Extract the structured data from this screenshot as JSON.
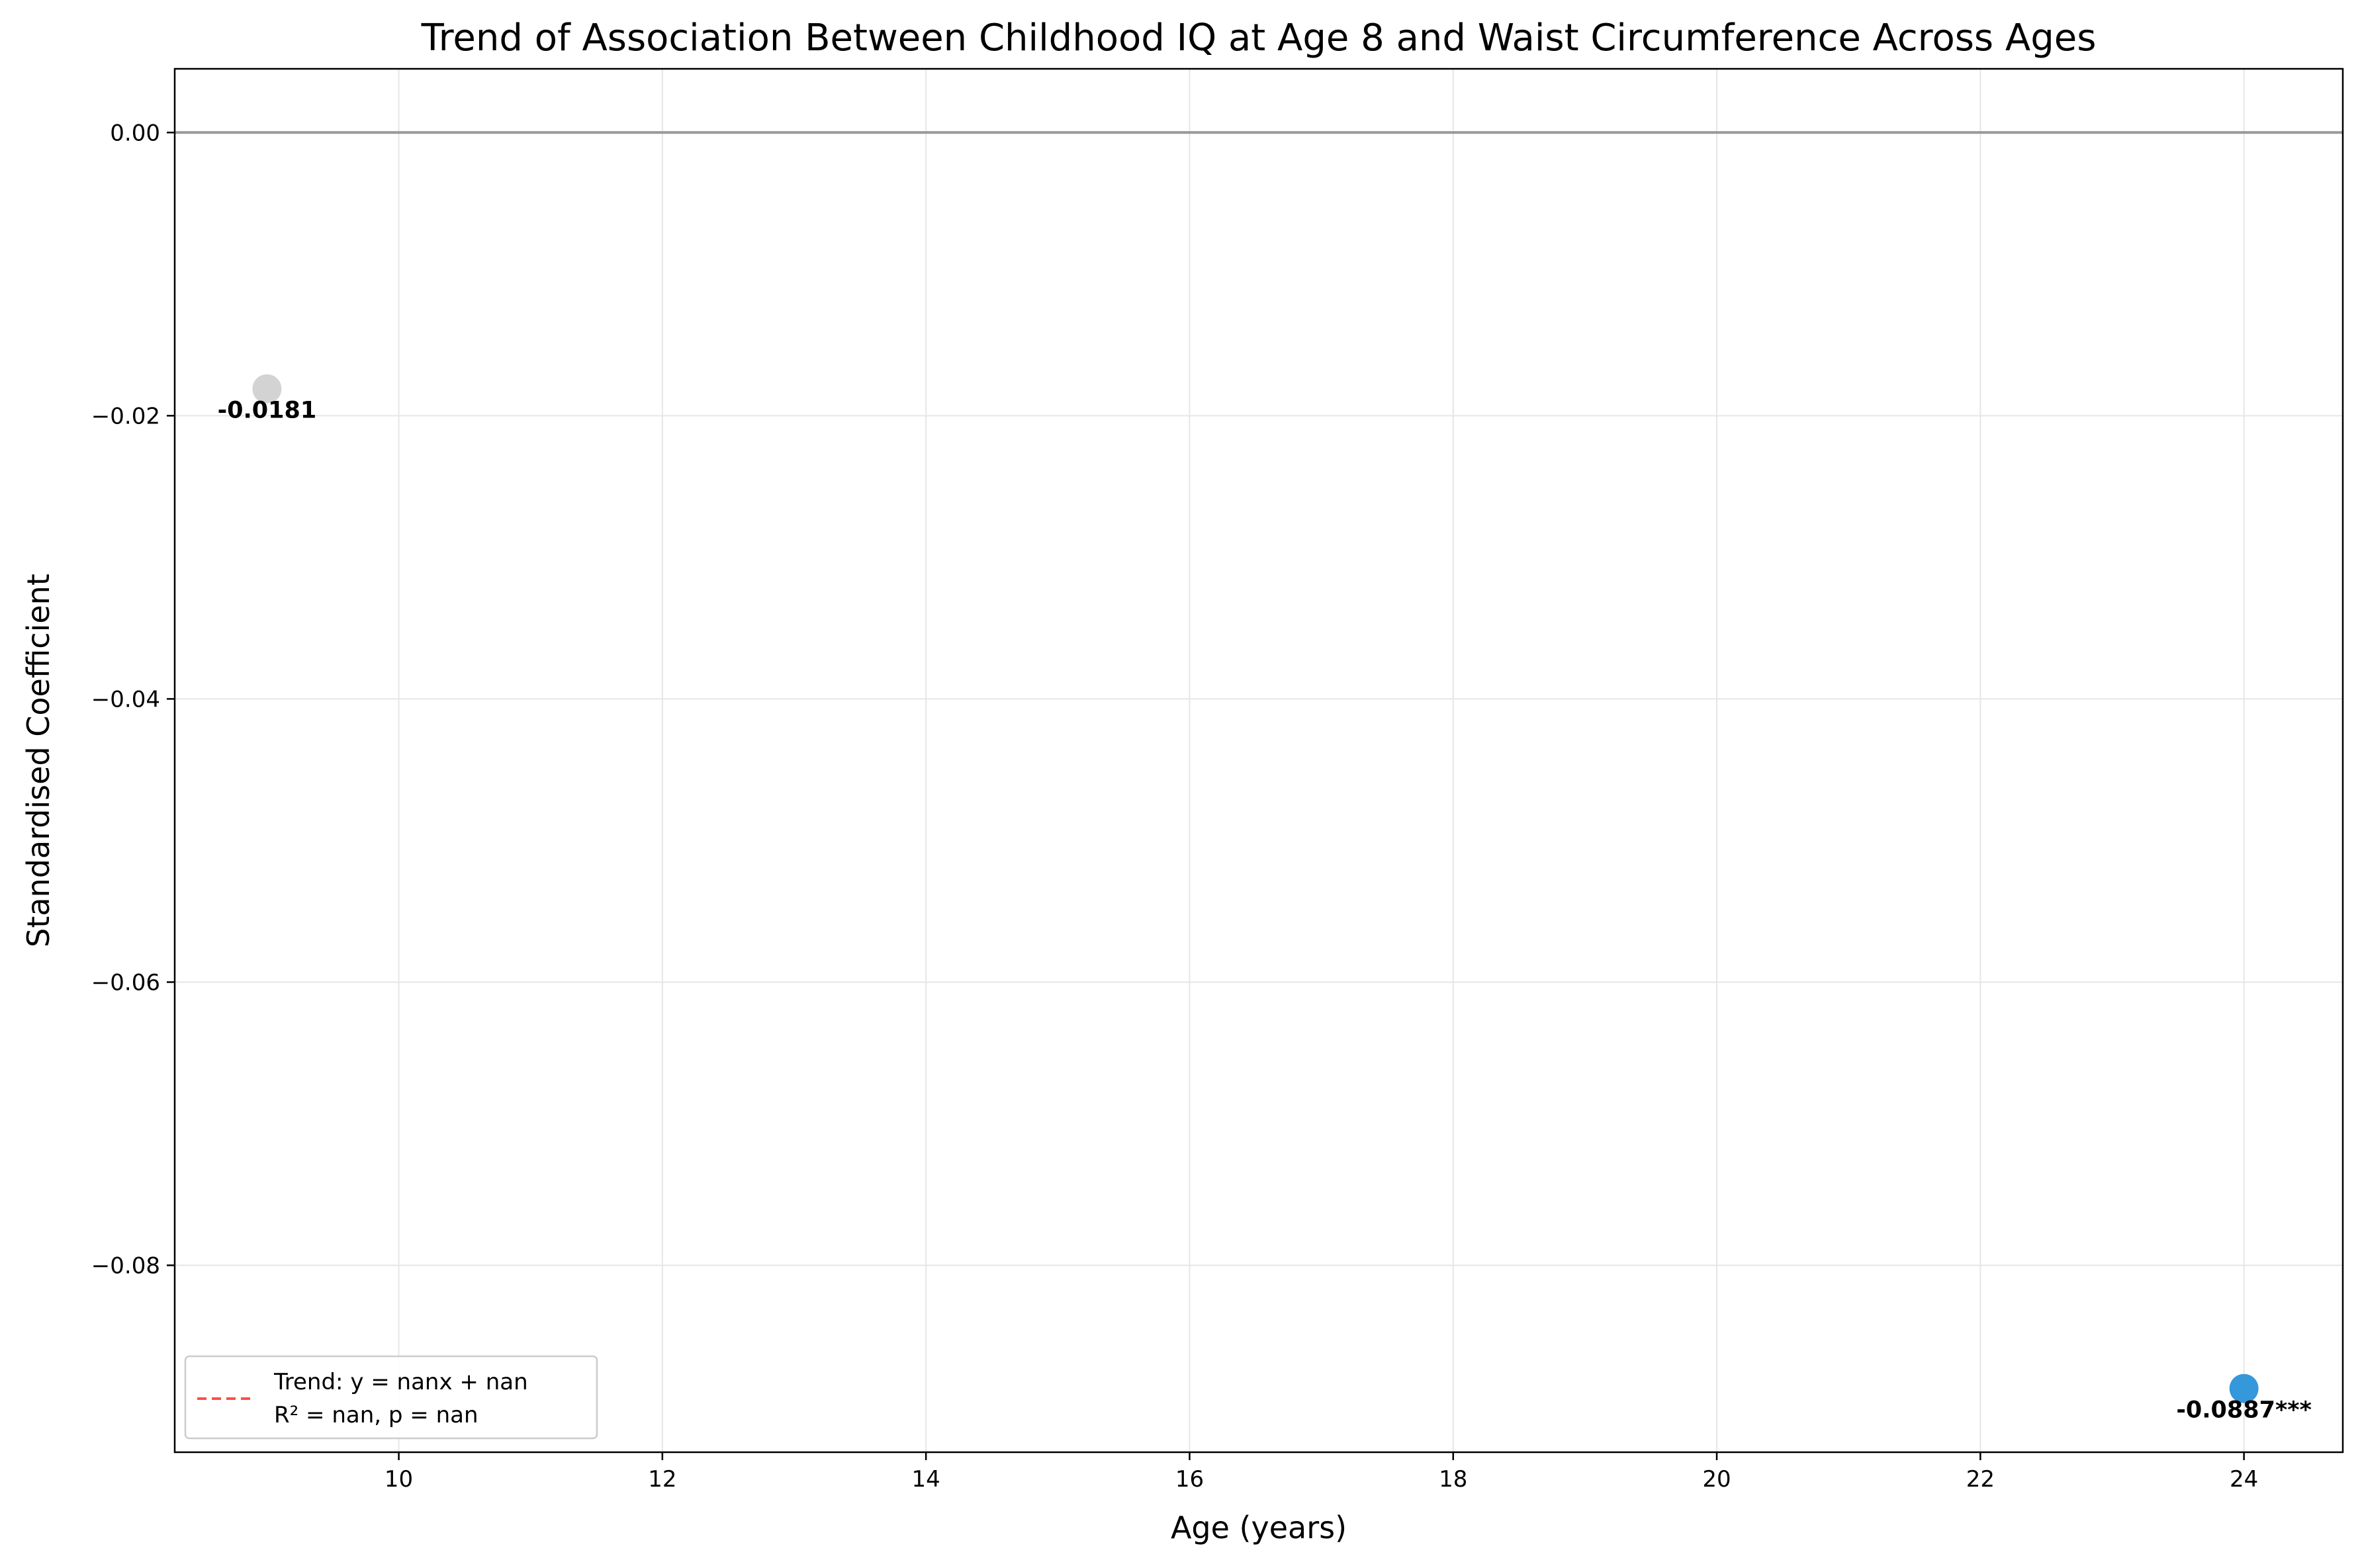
{
  "chart_data": {
    "type": "scatter",
    "title": "Trend of Association Between Childhood IQ at Age 8 and Waist Circumference Across Ages",
    "xlabel": "Age (years)",
    "ylabel": "Standardised Coefficient",
    "xlim": [
      8.3,
      24.75
    ],
    "ylim": [
      -0.0932,
      0.0045
    ],
    "xticks": [
      10,
      12,
      14,
      16,
      18,
      20,
      22,
      24
    ],
    "yticks": [
      0.0,
      -0.02,
      -0.04,
      -0.06,
      -0.08
    ],
    "xtick_labels": [
      "10",
      "12",
      "14",
      "16",
      "18",
      "20",
      "22",
      "24"
    ],
    "ytick_labels": [
      "0.00",
      "−0.02",
      "−0.04",
      "−0.06",
      "−0.08"
    ],
    "grid": true,
    "reference_line_y": 0,
    "points": [
      {
        "x": 9,
        "y": -0.0181,
        "label": "-0.0181",
        "color": "#d3d3d3"
      },
      {
        "x": 24,
        "y": -0.0887,
        "label": "-0.0887***",
        "color": "#3498db"
      }
    ],
    "legend": {
      "placement": "lower-left",
      "line_color": "#ff4d4d",
      "line_style": "dashed",
      "lines": [
        "Trend: y = nanx + nan",
        "R² = nan, p = nan"
      ]
    }
  }
}
